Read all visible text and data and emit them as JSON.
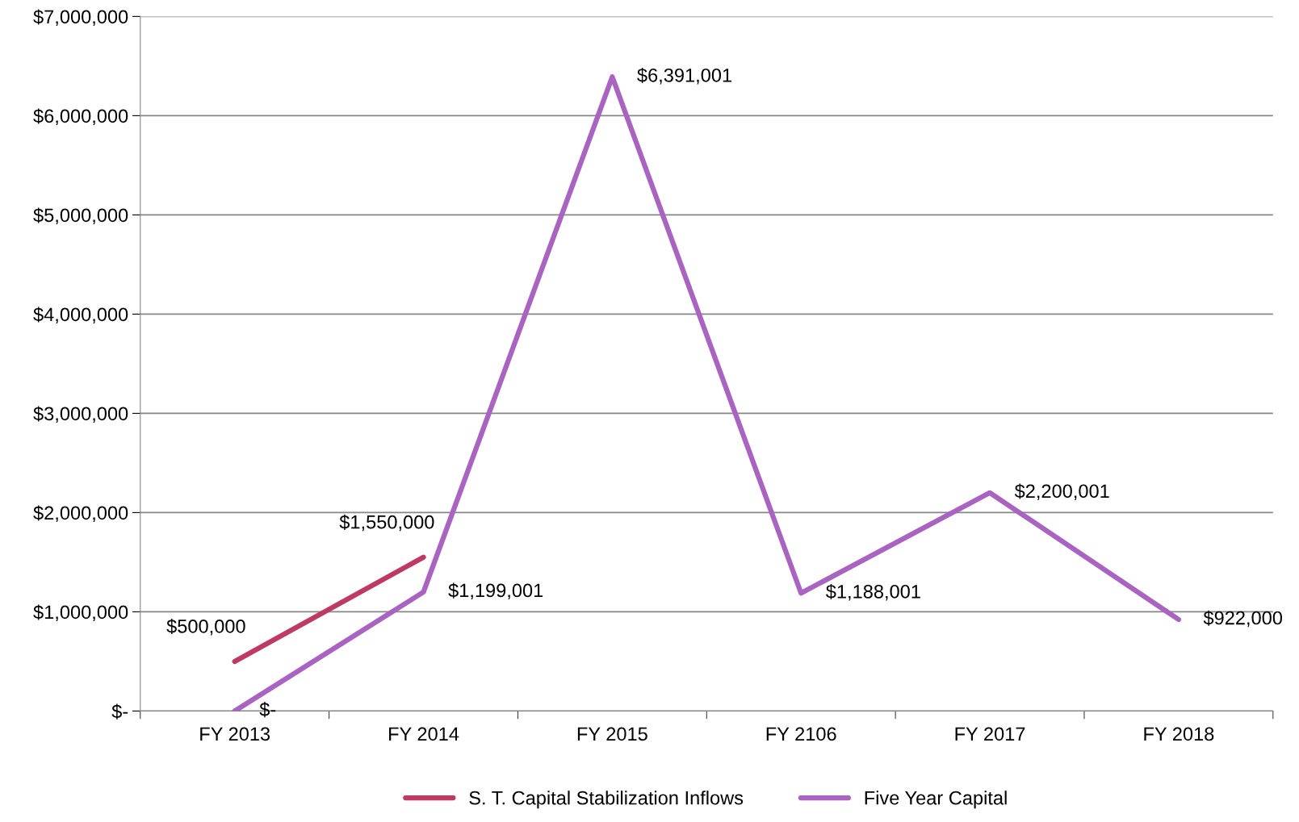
{
  "chart_data": {
    "type": "line",
    "categories": [
      "FY 2013",
      "FY 2014",
      "FY 2015",
      "FY 2106",
      "FY 2017",
      "FY 2018"
    ],
    "series": [
      {
        "name": "S. T. Capital Stabilization Inflows",
        "color": "#be3a62",
        "values": [
          500000,
          1550000,
          null,
          null,
          null,
          null
        ],
        "value_labels": [
          "$500,000",
          "$1,550,000",
          null,
          null,
          null,
          null
        ]
      },
      {
        "name": "Five Year Capital",
        "color": "#a864c0",
        "values": [
          0,
          1199001,
          6391001,
          1188001,
          2200001,
          922000
        ],
        "value_labels": [
          "$-",
          "$1,199,001",
          "$6,391,001",
          "$1,188,001",
          "$2,200,001",
          "$922,000"
        ]
      }
    ],
    "ylim": [
      0,
      7000000
    ],
    "yticks": [
      {
        "value": 0,
        "label": "$-"
      },
      {
        "value": 1000000,
        "label": "$1,000,000"
      },
      {
        "value": 2000000,
        "label": "$2,000,000"
      },
      {
        "value": 3000000,
        "label": "$3,000,000"
      },
      {
        "value": 4000000,
        "label": "$4,000,000"
      },
      {
        "value": 5000000,
        "label": "$5,000,000"
      },
      {
        "value": 6000000,
        "label": "$6,000,000"
      },
      {
        "value": 7000000,
        "label": "$7,000,000"
      }
    ],
    "grid": "y",
    "legend": "bottom",
    "marker": "none",
    "line_style": "solid"
  }
}
